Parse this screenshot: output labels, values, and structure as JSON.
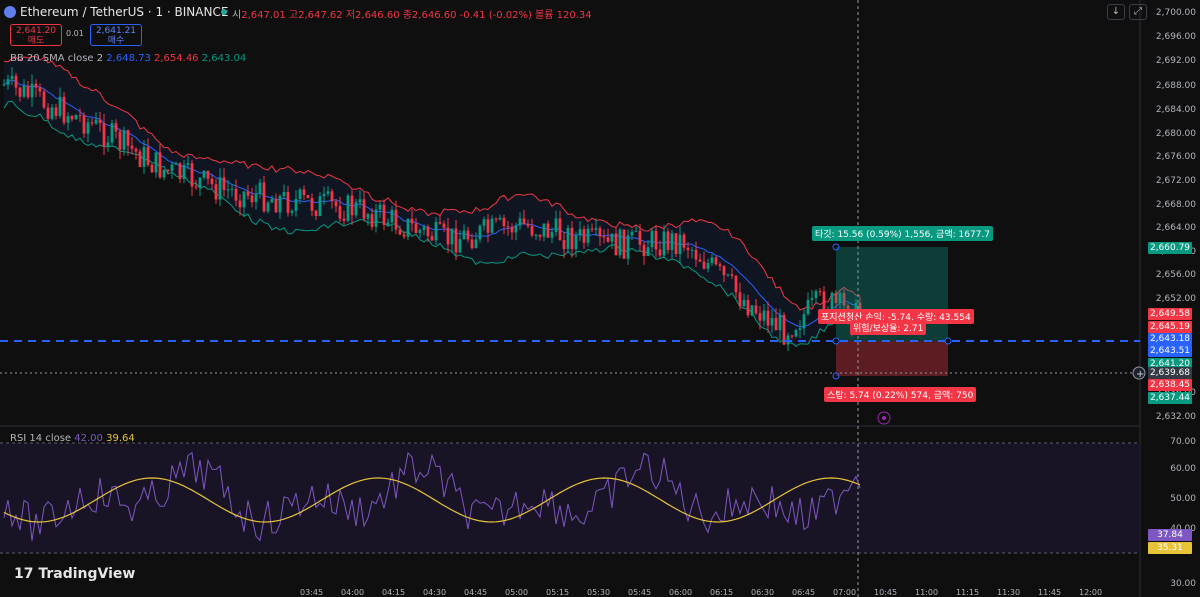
{
  "header": {
    "symbol": "Ethereum / TetherUS · 1 · BINANCE",
    "ohlc_prefix": "시",
    "ohlc": "2,647.01 고2,647.62 저2,646.60 종2,646.60 -0.41 (-0.02%) 볼륨 120.34",
    "sell_price": "2,641.20",
    "sell_label": "매도",
    "spread": "0.01",
    "buy_price": "2,641.21",
    "buy_label": "매수"
  },
  "indicators": {
    "bb_label": "BB 20 SMA close 2",
    "bb_basis": "2,648.73",
    "bb_upper": "2,654.46",
    "bb_lower": "2,643.04",
    "rsi_label": "RSI 14 close",
    "rsi_value": "42.00",
    "rsi_ma": "39.64"
  },
  "toolbar": {
    "arrow_label": "↓",
    "max_label": "⤢"
  },
  "price_axis": {
    "ticks": [
      "2,700.00",
      "2,696.00",
      "2,692.00",
      "2,688.00",
      "2,684.00",
      "2,680.00",
      "2,676.00",
      "2,672.00",
      "2,668.00",
      "2,664.00",
      "2,660.00",
      "2,656.00",
      "2,652.00",
      "2,636.00",
      "2,632.00"
    ],
    "badges": [
      {
        "text": "2,660.79",
        "color": "#089981"
      },
      {
        "text": "2,649.58",
        "color": "#f23645"
      },
      {
        "text": "2,645.19",
        "color": "#f23645"
      },
      {
        "text": "2,643.18",
        "color": "#2962ff"
      },
      {
        "text": "2,643.51",
        "color": "#2962ff"
      },
      {
        "text": "2,641.20",
        "color": "#089981"
      },
      {
        "text": "2,639.68",
        "color": "#363a45"
      },
      {
        "text": "2,638.45",
        "color": "#f23645"
      },
      {
        "text": "2,637.44",
        "color": "#089981"
      }
    ]
  },
  "rsi_axis": {
    "ticks": [
      "70.00",
      "60.00",
      "50.00",
      "40.00",
      "30.00"
    ],
    "badges": [
      {
        "text": "37.84",
        "color": "#7e57c2"
      },
      {
        "text": "35.31",
        "color": "#e7c338"
      }
    ]
  },
  "orders": {
    "target": "타깃: 15.56 (0.59%) 1,556, 금액: 1677.7",
    "position": "포지션청산 손익: -5.74, 수량: 43.554",
    "ratio": "위험/보상율: 2.71",
    "stop": "스탑: 5.74 (0.22%) 574, 금액: 750"
  },
  "time_axis": [
    "03:45",
    "04:00",
    "04:15",
    "04:30",
    "04:45",
    "05:00",
    "05:15",
    "05:30",
    "05:45",
    "06:00",
    "06:15",
    "06:30",
    "06:45",
    "07:00",
    "10:45",
    "11:00",
    "11:15",
    "11:30",
    "11:45",
    "12:00"
  ],
  "branding": {
    "logo": "TradingView"
  },
  "colors": {
    "up": "#089981",
    "down": "#f23645",
    "bb_basis": "#2962ff",
    "rsi": "#7e57c2",
    "rsi_ma": "#e7c338"
  }
}
